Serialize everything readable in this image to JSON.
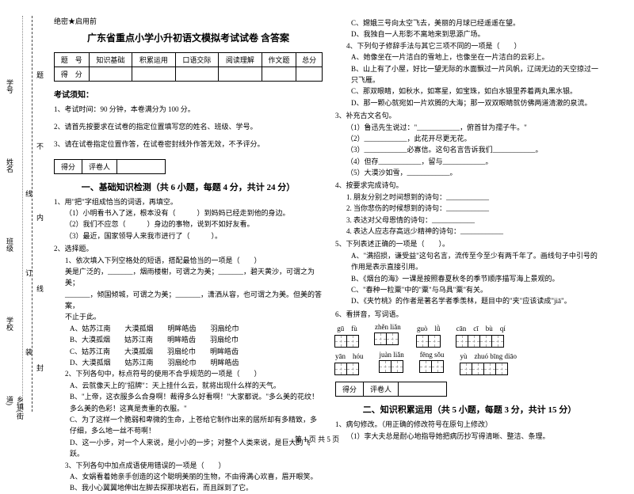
{
  "binding": {
    "labels": [
      "乡镇(街道)",
      "学校",
      "班级",
      "姓名",
      "学号"
    ],
    "marks": [
      "封",
      "线",
      "内",
      "不",
      "题"
    ],
    "fold": [
      "装",
      "订",
      "线"
    ]
  },
  "header_small": "绝密★启用前",
  "title": "广东省重点小学小升初语文模拟考试试卷 含答案",
  "score_table": {
    "row1": [
      "题　号",
      "知识基础",
      "积累运用",
      "口语交际",
      "阅读理解",
      "作文题",
      "总分"
    ],
    "row2_label": "得　分"
  },
  "notice_head": "考试须知：",
  "notices": [
    "1、考试时间：90 分钟，本卷满分为 100 分。",
    "2、请首先按要求在试卷的指定位置填写您的姓名、班级、学号。",
    "3、请在试卷指定位置作答，在试卷密封线外作答无效，不予评分。"
  ],
  "scorebar": {
    "c1": "得分",
    "c2": "评卷人"
  },
  "section1_title": "一、基础知识检测（共 6 小题，每题 4 分，共计 24 分）",
  "q1": {
    "stem": "1、用\"把\"字组成恰当的词语，再填空。",
    "s1": "（1）小明看书入了迷，根本没有（　　　）到妈妈已经走到他的身边。",
    "s2": "（2）我们不应忽（　　　）身边的事物，说到不如好友看。",
    "s3": "（3）最近，国家领导人来我市进行了（　　　）。"
  },
  "q2": {
    "stem": "2、选择题。",
    "s1": "1、依次填入下列空格处的短语，搭配最恰当的一项是（　　）",
    "line1": "美是广泛的，_______，烟雨楼榭，可谓之为美；_______，碧天黄沙，可谓之为美；",
    "line2": "_______，倾国倾城，可谓之为美；_______，潇洒从容，也可谓之为美。但美的答案，",
    "line3": "不止于此。",
    "optA": "A、姑苏江南　　大漠孤烟　　明眸皓齿　　羽扇纶巾",
    "optB": "B、大漠孤烟　　姑苏江南　　明眸皓齿　　羽扇纶巾",
    "optC": "C、姑苏江南　　大漠孤烟　　羽扇纶巾　　明眸皓齿",
    "optD": "D、大漠孤烟　　姑苏江南　　羽扇纶巾　　明眸皓齿",
    "s2": "2、下列各句中，标点符号的使用不合乎规范的一项是（　　）",
    "s2a": "A、云就像天上的\"招牌\"：天上挂什么云，就将出现什么样的天气。",
    "s2b": "B、\"上帝，这衣服多么合身啊！裁得多么好看啊！\"大家都说。\"多么美的花纹！多么美的色彩！这真是贵重的衣服。\"",
    "s2c": "C、为了这样一个脆弱和卑微的生命，上苍给它制作出来的居所却有多精致，多仔细，多么地一丝不苟啊！",
    "s2d": "D、这一小步，对一个人来说，是小小的一步；对整个人类来说，是巨大的飞跃。",
    "s3": "3、下列各句中加点成语使用错误的一项是（　　）",
    "s3a": "A、女娲看着她亲手创造的这个聪明美丽的生物，不由得满心欢喜，眉开眼笑。",
    "s3b": "B、我小心翼翼地伸出左脚去探那块岩石，而且踩到了它。"
  },
  "right": {
    "q2c": "C、嫦娥三号向太空飞去，美丽的月球已经遥遥在望。",
    "q2d": "D、我独自一人形影不离地来到思源广场。",
    "q4stem": "4、下列句子修辞手法与其它三项不同的一项是（　　）",
    "q4a": "A、她像坐在一片洁白的雪地上，也像坐在一片洁白的云彩上。",
    "q4b": "B、山上有了小屋，好比一望无际的水面飘过一片风帆，辽阔无边的天空掠过一只飞雁。",
    "q4c": "C、那双眼睛，如秋水，如寒星，如宝珠，如白水银里养着两丸黑水银。",
    "q4d": "D、那一颗心就宛如一片欢腾的大海；那一双双眼睛就仿佛两道清澈的泉流。",
    "q3stem": "3、补充古文名句。",
    "q3_1": "（1）鲁迅先生说过：\"____________，俯首甘为孺子牛。\"",
    "q3_2": "（2）____________，此花开尽更无花。",
    "q3_3": "（3）____________必寡信。这句名言告诉我们____________。",
    "q3_4": "（4）但存____________，留与____________。",
    "q3_5": "（5）大漠沙如雪，____________。",
    "q4s": "4、按要求完成诗句。",
    "q4_1": "1. 朋友分别之时间想到的诗句：____________",
    "q4_2": "2. 当你悲伤的时候想到的诗句：____________",
    "q4_3": "3. 表达对父母恩情的诗句：____________",
    "q4_4": "4. 表达人应志存高远少精神的诗句：____________",
    "q5stem": "5、下列表述正确的一项是（　　）。",
    "q5a": "A、\"满招损，谦受益\"这句名言，流传至今至少有两千年了。画线句子中引号的作用是表示直接引用。",
    "q5b": "B、《烟台的海》一课是按照春夏秋冬的季节顺序描写海上景观的。",
    "q5c": "C、\"春种一粒粟\"中的\"粟\"与乌具\"粟\"有关。",
    "q5d": "D、《夹竹桃》的作者是著名学者季羡林，题目中的\"夹\"应该读成\"jiā\"。",
    "q6stem": "6、看拼音，写词语。",
    "pinyin": [
      {
        "py": "gū　fù",
        "cells": 2
      },
      {
        "py": "zhěn liǎn",
        "cells": 2
      },
      {
        "py": "guò　lǜ",
        "cells": 2
      },
      {
        "py": "cān　cī　bù　qí",
        "cells": 4
      },
      {
        "py": "yān　hóu",
        "cells": 2
      },
      {
        "py": "juàn liǎn",
        "cells": 2
      },
      {
        "py": "fēng sǒu",
        "cells": 2
      },
      {
        "py": "yù　zhuó bīng diāo",
        "cells": 4
      }
    ],
    "section2_title": "二、知识积累运用（共 5 小题，每题 3 分，共计 15 分）",
    "r1stem": "1、病句修改。（用正确的修改符号在原句上修改）",
    "r1_1": "（1）李大夫总是耐心地指导她把病历抄写得清晰、整洁、条理。"
  },
  "footer": "第 1 页 共 5 页"
}
